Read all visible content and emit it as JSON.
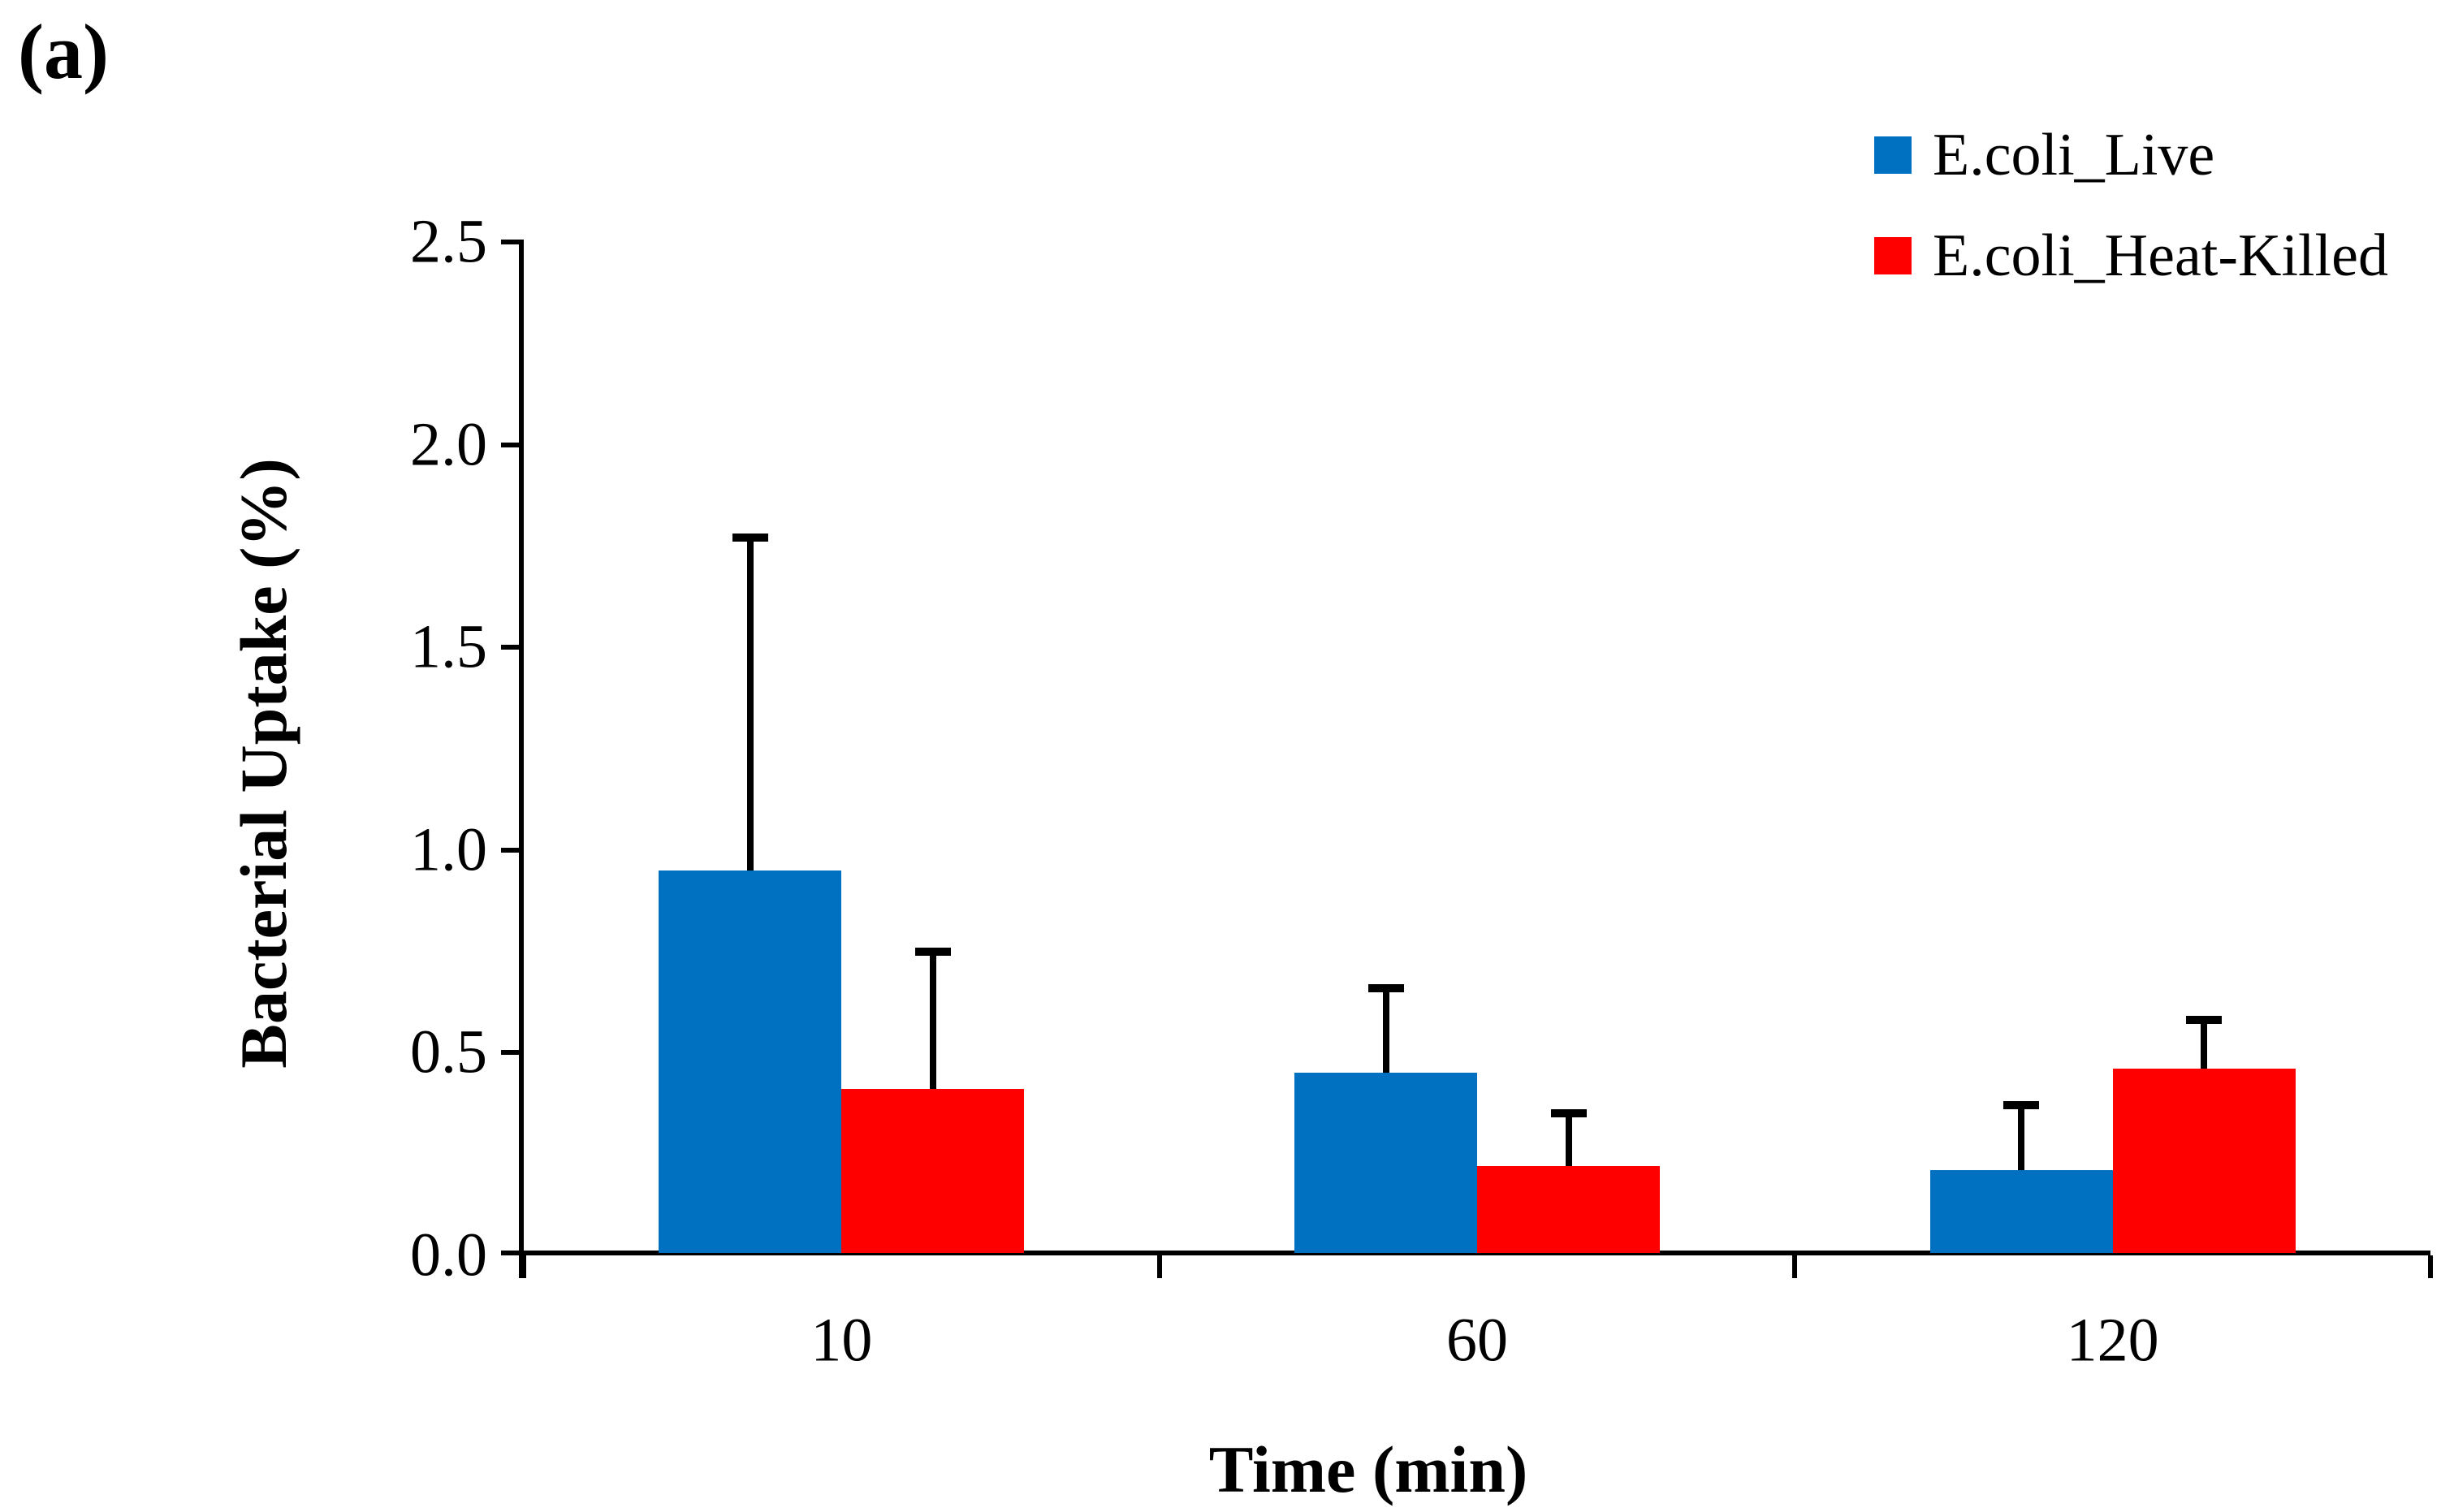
{
  "chart_data": {
    "type": "bar",
    "panel_label": "(a)",
    "xlabel": "Time (min)",
    "ylabel": "Bacterial Uptake (%)",
    "categories": [
      "10",
      "60",
      "120"
    ],
    "series": [
      {
        "name": "E.coli_Live",
        "color": "#0070C0",
        "values": [
          0.95,
          0.45,
          0.21
        ],
        "errors_plus": [
          0.83,
          0.22,
          0.17
        ]
      },
      {
        "name": "E.coli_Heat-Killed",
        "color": "#FF0000",
        "values": [
          0.41,
          0.22,
          0.46
        ],
        "errors_plus": [
          0.35,
          0.14,
          0.13
        ]
      }
    ],
    "ylim": [
      0.0,
      2.5
    ],
    "ytick_step": 0.5,
    "ytick_labels": [
      "0.0",
      "0.5",
      "1.0",
      "1.5",
      "2.0",
      "2.5"
    ],
    "legend_position": "top-right",
    "grid": false,
    "error_bars": "plus-only",
    "axis_color": "#000000",
    "text_color": "#000000"
  }
}
